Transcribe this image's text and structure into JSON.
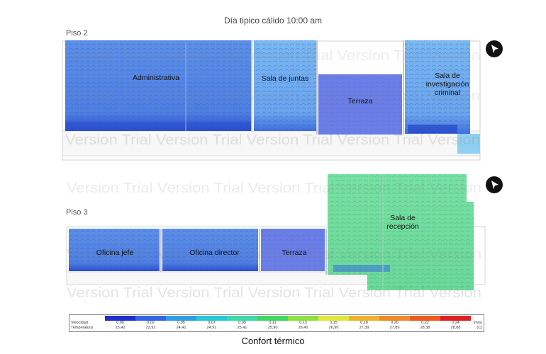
{
  "title": "Día tipico cálido 10:00 am",
  "floor2": {
    "label": "Piso 2",
    "rooms": {
      "administrativa": "Administrativa",
      "sala_juntas": "Sala de juntas",
      "terraza": "Terraza",
      "sala_inv_1": "Sala de",
      "sala_inv_2": "investigación",
      "sala_inv_3": "criminal"
    }
  },
  "floor3": {
    "label": "Piso 3",
    "rooms": {
      "oficina_jefe": "Oficina jefe",
      "oficina_director": "Oficina director",
      "terraza": "Terraza",
      "sala_recepcion_1": "Sala de",
      "sala_recepcion_2": "recepción"
    }
  },
  "watermark": "Version Trial Version Trial Version Trial Version Trial Version",
  "legend": {
    "velocity_label": "Velocidad",
    "temperature_label": "Temperatura",
    "velocity_unit": "(m/s)",
    "temperature_unit": "(C)",
    "velocity": [
      "0,00",
      "0,02",
      "0,05",
      "0,07",
      "0,09",
      "0,11",
      "0,13",
      "0,15",
      "0,18",
      "0,20",
      "0,22",
      "0,24"
    ],
    "temperature": [
      "23,42",
      "23,92",
      "24,41",
      "24,91",
      "25,41",
      "25,90",
      "26,40",
      "26,90",
      "27,39",
      "27,89",
      "28,38",
      "28,88"
    ],
    "colors": [
      "#1f2fd0",
      "#3366e6",
      "#2f9ee8",
      "#28c8d8",
      "#3fd8a8",
      "#40d860",
      "#8ce040",
      "#e2e83a",
      "#f0b030",
      "#f08a28",
      "#ee5a20",
      "#e02020"
    ]
  },
  "caption": "Confort térmico"
}
